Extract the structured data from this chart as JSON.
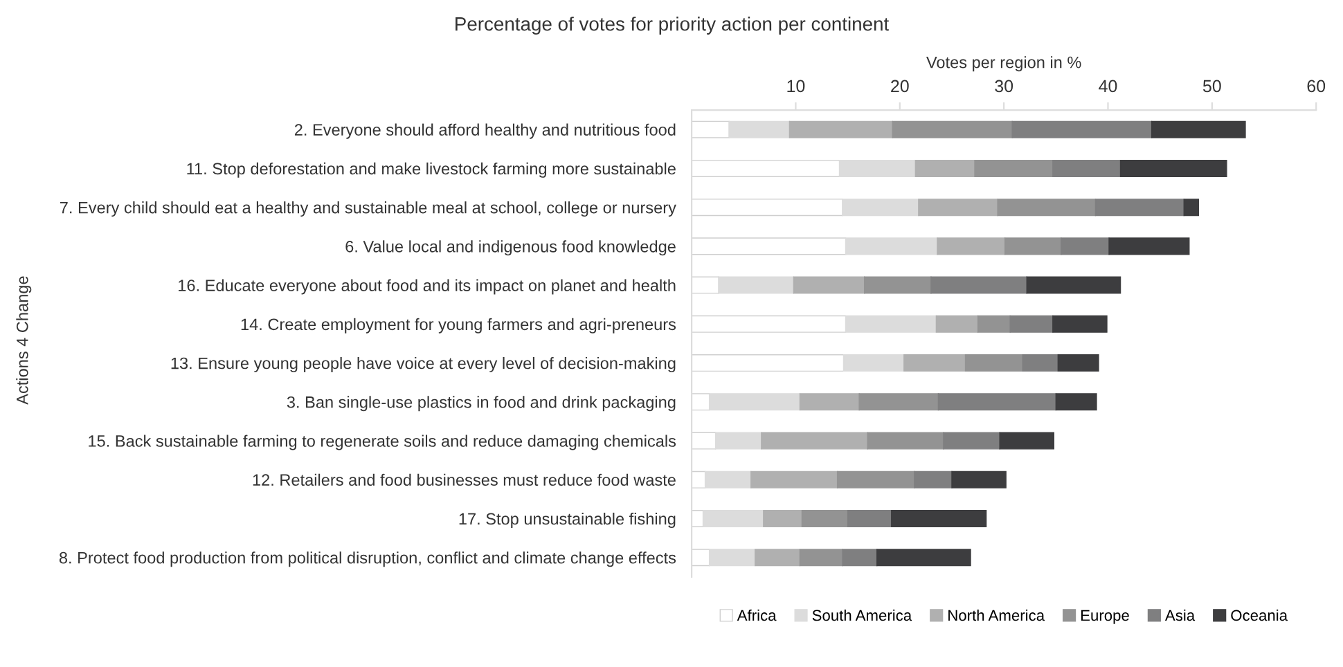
{
  "chart_data": {
    "type": "bar",
    "orientation": "horizontal",
    "stacked": true,
    "title": "Percentage of votes for priority action per continent",
    "xlabel": "Votes per region in %",
    "ylabel": "Actions 4 Change",
    "categories": [
      "2. Everyone should afford healthy and nutritious food",
      "11. Stop deforestation and make livestock farming more sustainable",
      "7. Every child should eat a healthy and sustainable meal at school, college or nursery",
      "6. Value local and indigenous food knowledge",
      "16. Educate everyone about food and its impact on planet and health",
      "14. Create employment for young farmers and agri-preneurs",
      "13. Ensure young people have voice at every level of decision-making",
      "3. Ban single-use plastics in food and drink packaging",
      "15. Back sustainable farming to regenerate soils and reduce damaging chemicals",
      "12. Retailers and food businesses must reduce food waste",
      "17. Stop unsustainable fishing",
      "8. Protect food production from political disruption, conflict and climate change effects"
    ],
    "series": [
      {
        "name": "Africa",
        "color": "#ffffff",
        "values": [
          3.6,
          14.2,
          14.5,
          14.8,
          2.6,
          14.8,
          14.6,
          1.7,
          2.3,
          1.3,
          1.1,
          1.7
        ]
      },
      {
        "name": "South America",
        "color": "#dcdcdc",
        "values": [
          5.8,
          7.3,
          7.3,
          8.8,
          7.2,
          8.7,
          5.8,
          8.7,
          4.4,
          4.4,
          5.8,
          4.4
        ]
      },
      {
        "name": "North America",
        "color": "#b0b0b0",
        "values": [
          9.9,
          5.7,
          7.6,
          6.5,
          6.8,
          4.0,
          5.9,
          5.7,
          10.2,
          8.3,
          3.7,
          4.3
        ]
      },
      {
        "name": "Europe",
        "color": "#939393",
        "values": [
          11.5,
          7.5,
          9.4,
          5.4,
          6.4,
          3.1,
          5.5,
          7.6,
          7.3,
          7.4,
          4.4,
          4.1
        ]
      },
      {
        "name": "Asia",
        "color": "#7f7f80",
        "values": [
          13.4,
          6.5,
          8.5,
          4.6,
          9.2,
          4.1,
          3.4,
          11.3,
          5.4,
          3.6,
          4.2,
          3.3
        ]
      },
      {
        "name": "Oceania",
        "color": "#3d3d3f",
        "values": [
          9.0,
          10.2,
          1.4,
          7.7,
          9.0,
          5.2,
          3.9,
          3.9,
          5.2,
          5.2,
          9.1,
          9.0
        ]
      }
    ],
    "xlim": [
      0,
      60
    ],
    "xticks": [
      10,
      20,
      30,
      40,
      50,
      60
    ],
    "grid": false,
    "legend": "bottom"
  }
}
